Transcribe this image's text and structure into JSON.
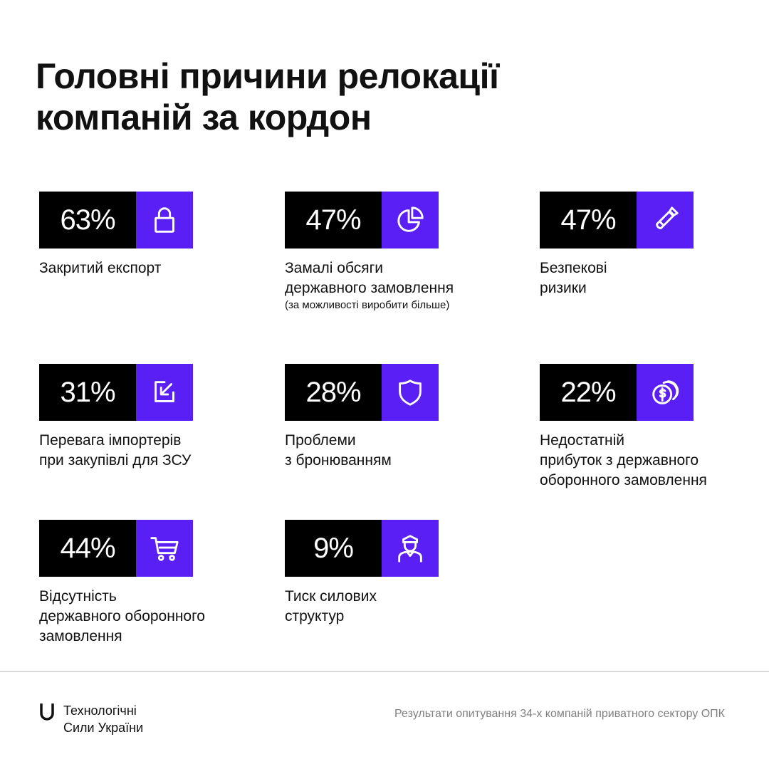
{
  "title": {
    "line1": "Головні причини релокації",
    "line2": "компаній за кордон"
  },
  "accent_color": "#5a1ff5",
  "items": [
    {
      "percent": "63%",
      "icon": "lock-icon",
      "label": [
        "Закритий експорт"
      ]
    },
    {
      "percent": "47%",
      "icon": "pie-chart-icon",
      "label": [
        "Замалі обсяги",
        "державного замовлення"
      ],
      "note": "(за можливості виробити більше)"
    },
    {
      "percent": "47%",
      "icon": "bomb-icon",
      "label": [
        "Безпекові",
        "ризики"
      ]
    },
    {
      "percent": "31%",
      "icon": "import-arrow-icon",
      "label": [
        "Перевага імпортерів",
        "при закупівлі для ЗСУ"
      ]
    },
    {
      "percent": "28%",
      "icon": "shield-icon",
      "label": [
        "Проблеми",
        "з бронюванням"
      ]
    },
    {
      "percent": "22%",
      "icon": "coins-icon",
      "label": [
        "Недостатній",
        "прибуток з державного",
        "оборонного замовлення"
      ]
    },
    {
      "percent": "44%",
      "icon": "cart-icon",
      "label": [
        "Відсутність",
        "державного оборонного",
        "замовлення"
      ]
    },
    {
      "percent": "9%",
      "icon": "officer-icon",
      "label": [
        "Тиск силових",
        "структур"
      ]
    }
  ],
  "footer": {
    "logo_line1": "Технологічні",
    "logo_line2": "Сили України",
    "source": "Результати опитування 34-х компаній приватного сектору ОПК"
  }
}
